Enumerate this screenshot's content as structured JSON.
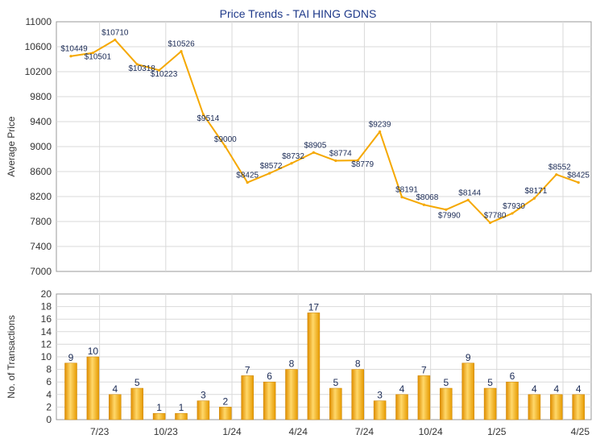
{
  "chart_data": [
    {
      "type": "line",
      "title": "Price Trends - TAI HING GDNS",
      "ylabel": "Average Price",
      "ylim": [
        7000,
        11000
      ],
      "yticks": [
        "11000",
        "10600",
        "10200",
        "9800",
        "9400",
        "9000",
        "8600",
        "8200",
        "7800",
        "7400",
        "7000"
      ],
      "grid": true,
      "color": "#f5a800",
      "series": [
        {
          "values": [
            10449,
            10501,
            10710,
            10318,
            10223,
            10526,
            9514,
            9000,
            8425,
            8572,
            8732,
            8905,
            8774,
            8779,
            9239,
            8191,
            8068,
            7990,
            8144,
            7780,
            7930,
            8171,
            8552,
            8425
          ],
          "labels": [
            "$10449",
            "$10501",
            "$10710",
            "$10318",
            "$10223",
            "$10526",
            "$9514",
            "$9000",
            "$8425",
            "$8572",
            "$8732",
            "$8905",
            "$8774",
            "$8779",
            "$9239",
            "$8191",
            "$8068",
            "$7990",
            "$8144",
            "$7780",
            "$7930",
            "$8171",
            "$8552",
            "$8425"
          ]
        }
      ]
    },
    {
      "type": "bar",
      "ylabel": "No. of Transactions",
      "ylim": [
        0,
        20
      ],
      "yticks": [
        "20",
        "18",
        "16",
        "14",
        "12",
        "10",
        "8",
        "6",
        "4",
        "2",
        "0"
      ],
      "grid": true,
      "color": "#f5a800",
      "values": [
        9,
        10,
        4,
        5,
        1,
        1,
        3,
        2,
        7,
        6,
        8,
        17,
        5,
        8,
        3,
        4,
        7,
        5,
        9,
        5,
        6,
        4,
        4,
        4
      ],
      "x_ticks": [
        "7/23",
        "10/23",
        "1/24",
        "4/24",
        "7/24",
        "10/24",
        "1/25",
        "4/25"
      ]
    }
  ]
}
